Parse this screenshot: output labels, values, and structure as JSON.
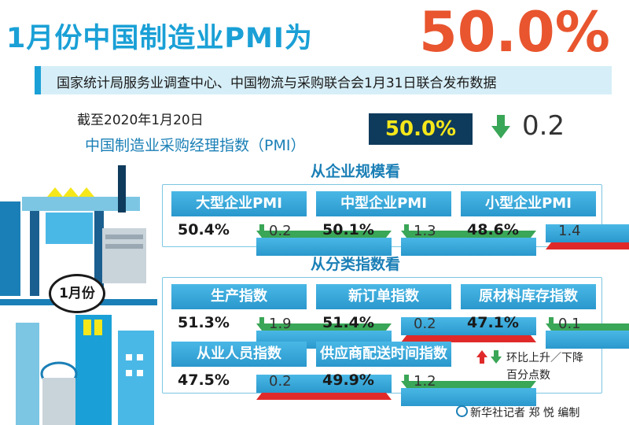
{
  "title": {
    "lead": "1月份中国制造业PMI为",
    "value": "50.0%"
  },
  "source": "国家统计局服务业调查中心、中国物流与采购联合会1月31日联合发布数据",
  "as_of": "截至2020年1月20日",
  "pmi_name": "中国制造业采购经理指数（PMI）",
  "headline": {
    "value": "50.0%",
    "direction": "down",
    "change": "0.2"
  },
  "month_badge": "1月份",
  "section_scale": {
    "title": "从企业规模看",
    "cards": [
      {
        "label": "大型企业PMI",
        "value": "50.4%",
        "direction": "down",
        "change": "0.2"
      },
      {
        "label": "中型企业PMI",
        "value": "50.1%",
        "direction": "down",
        "change": "1.3"
      },
      {
        "label": "小型企业PMI",
        "value": "48.6%",
        "direction": "up",
        "change": "1.4"
      }
    ]
  },
  "section_category": {
    "title": "从分类指数看",
    "cards": [
      {
        "label": "生产指数",
        "value": "51.3%",
        "direction": "down",
        "change": "1.9"
      },
      {
        "label": "新订单指数",
        "value": "51.4%",
        "direction": "up",
        "change": "0.2"
      },
      {
        "label": "原材料库存指数",
        "value": "47.1%",
        "direction": "down",
        "change": "0.1"
      },
      {
        "label": "从业人员指数",
        "value": "47.5%",
        "direction": "up",
        "change": "0.2"
      },
      {
        "label": "供应商配送时间指数",
        "value": "49.9%",
        "direction": "down",
        "change": "1.2"
      }
    ]
  },
  "legend": {
    "line1": "环比上升／下降",
    "line2": "百分点数"
  },
  "credit": "新华社记者 郑 悦 编制",
  "colors": {
    "accent": "#1aa0d6",
    "headline": "#e8552e",
    "up": "#e02a2a",
    "down": "#3aa657",
    "highlight": "#f5e71a"
  }
}
